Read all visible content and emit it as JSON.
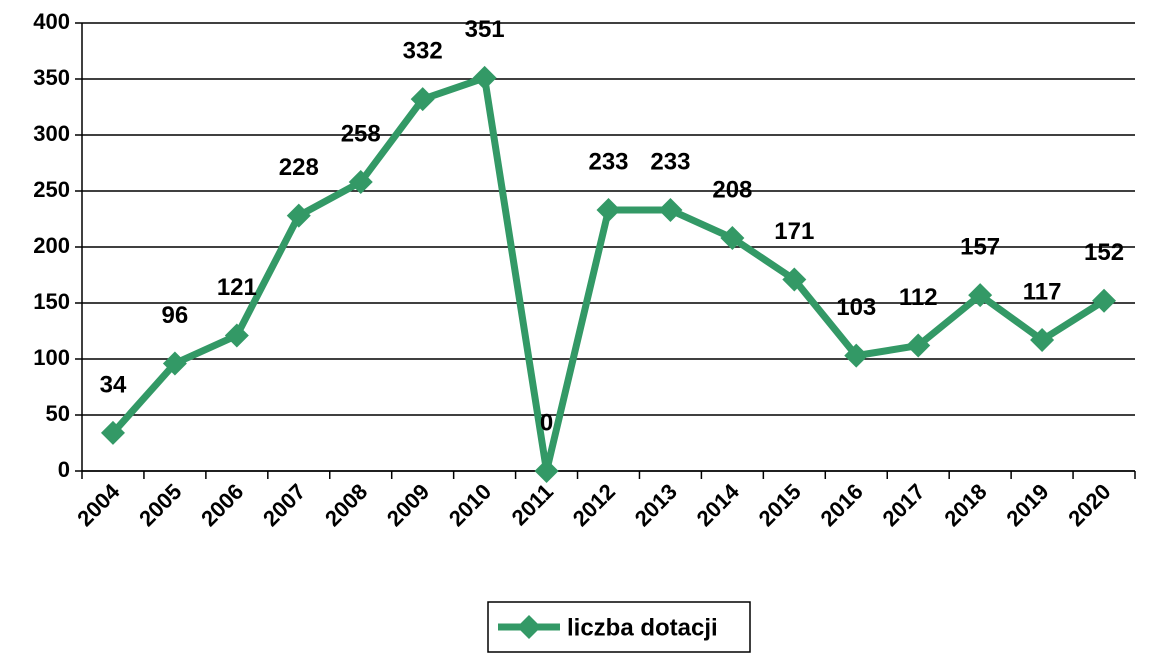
{
  "chart_data": {
    "type": "line",
    "categories": [
      "2004",
      "2005",
      "2006",
      "2007",
      "2008",
      "2009",
      "2010",
      "2011",
      "2012",
      "2013",
      "2014",
      "2015",
      "2016",
      "2017",
      "2018",
      "2019",
      "2020"
    ],
    "series": [
      {
        "name": "liczba dotacji",
        "color": "#339966",
        "values": [
          34,
          96,
          121,
          228,
          258,
          332,
          351,
          0,
          233,
          233,
          208,
          171,
          103,
          112,
          157,
          117,
          152
        ]
      }
    ],
    "ylim": [
      0,
      400
    ],
    "yticks": [
      0,
      50,
      100,
      150,
      200,
      250,
      300,
      350,
      400
    ],
    "grid": true,
    "legend": "bottom",
    "data_labels": true
  }
}
